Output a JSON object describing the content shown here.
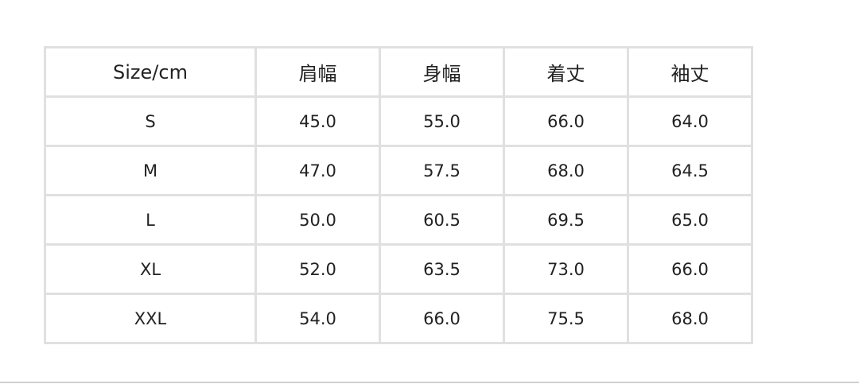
{
  "table": {
    "headers": [
      "Size/cm",
      "肩幅",
      "身幅",
      "着丈",
      "袖丈"
    ],
    "rows": [
      [
        "S",
        "45.0",
        "55.0",
        "66.0",
        "64.0"
      ],
      [
        "M",
        "47.0",
        "57.5",
        "68.0",
        "64.5"
      ],
      [
        "L",
        "50.0",
        "60.5",
        "69.5",
        "65.0"
      ],
      [
        "XL",
        "52.0",
        "63.5",
        "73.0",
        "66.0"
      ],
      [
        "XXL",
        "54.0",
        "66.0",
        "75.5",
        "68.0"
      ]
    ]
  },
  "colors": {
    "border": "#e0e0e0",
    "text": "#222222"
  }
}
